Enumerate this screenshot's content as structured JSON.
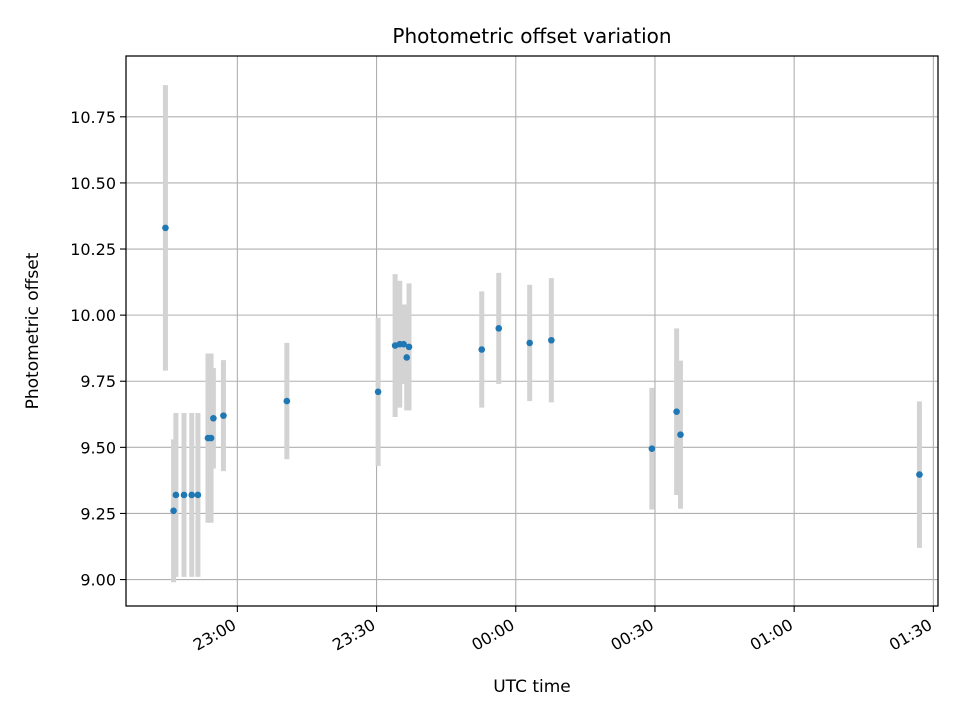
{
  "chart_data": {
    "type": "scatter",
    "title": "Photometric offset variation",
    "xlabel": "UTC time",
    "ylabel": "Photometric offset",
    "x_format": "HH:MM",
    "xlim": [
      "22:36",
      "01:31"
    ],
    "ylim": [
      8.9,
      10.98
    ],
    "x_ticks": [
      "23:00",
      "23:30",
      "00:00",
      "00:30",
      "01:00",
      "01:30"
    ],
    "y_ticks": [
      "9.00",
      "9.25",
      "9.50",
      "9.75",
      "10.00",
      "10.25",
      "10.50",
      "10.75"
    ],
    "grid": true,
    "colors": {
      "point": "#1f77b4",
      "errorbar": "#d3d3d3",
      "grid": "#b0b0b0"
    },
    "points": [
      {
        "time": "22:44:30",
        "y": 10.33,
        "yerr": 0.54
      },
      {
        "time": "22:46:15",
        "y": 9.26,
        "yerr": 0.27
      },
      {
        "time": "22:46:45",
        "y": 9.32,
        "yerr": 0.31
      },
      {
        "time": "22:48:30",
        "y": 9.32,
        "yerr": 0.31
      },
      {
        "time": "22:50:10",
        "y": 9.32,
        "yerr": 0.31
      },
      {
        "time": "22:51:30",
        "y": 9.32,
        "yerr": 0.31
      },
      {
        "time": "22:53:40",
        "y": 9.535,
        "yerr": 0.32
      },
      {
        "time": "22:54:20",
        "y": 9.535,
        "yerr": 0.32
      },
      {
        "time": "22:54:50",
        "y": 9.61,
        "yerr": 0.19
      },
      {
        "time": "22:57:00",
        "y": 9.62,
        "yerr": 0.21
      },
      {
        "time": "23:10:40",
        "y": 9.675,
        "yerr": 0.22
      },
      {
        "time": "23:30:20",
        "y": 9.71,
        "yerr": 0.28
      },
      {
        "time": "23:34:00",
        "y": 9.885,
        "yerr": 0.27
      },
      {
        "time": "23:35:00",
        "y": 9.89,
        "yerr": 0.24
      },
      {
        "time": "23:35:50",
        "y": 9.89,
        "yerr": 0.15
      },
      {
        "time": "23:36:30",
        "y": 9.84,
        "yerr": 0.2
      },
      {
        "time": "23:37:00",
        "y": 9.88,
        "yerr": 0.24
      },
      {
        "time": "23:52:40",
        "y": 9.87,
        "yerr": 0.22
      },
      {
        "time": "23:56:20",
        "y": 9.95,
        "yerr": 0.21
      },
      {
        "time": "00:03:00",
        "y": 9.895,
        "yerr": 0.22
      },
      {
        "time": "00:07:40",
        "y": 9.905,
        "yerr": 0.235
      },
      {
        "time": "00:29:20",
        "y": 9.495,
        "yerr": 0.23
      },
      {
        "time": "00:34:40",
        "y": 9.635,
        "yerr": 0.315
      },
      {
        "time": "00:35:30",
        "y": 9.548,
        "yerr": 0.28
      },
      {
        "time": "01:27:00",
        "y": 9.397,
        "yerr": 0.277
      }
    ]
  }
}
